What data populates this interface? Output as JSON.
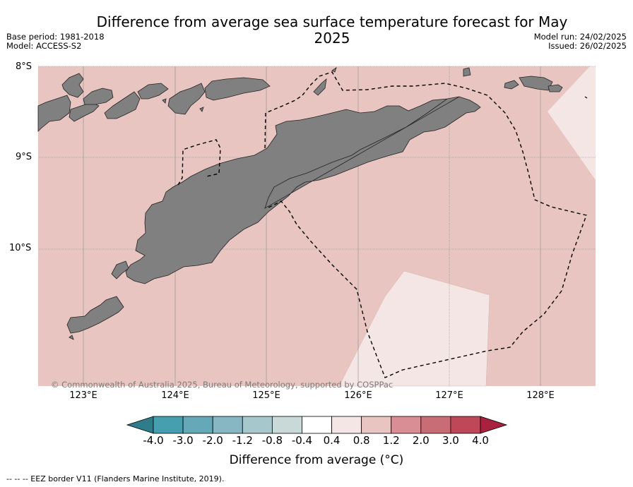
{
  "title": "Difference from average sea surface temperature forecast for May 2025",
  "meta_left": [
    "Base period: 1981-2018",
    "Model: ACCESS-S2"
  ],
  "meta_right": [
    "Model run: 24/02/2025",
    "Issued: 26/02/2025"
  ],
  "lat_labels": [
    "8°S",
    "9°S",
    "10°S"
  ],
  "lon_labels": [
    "123°E",
    "124°E",
    "125°E",
    "126°E",
    "127°E",
    "128°E"
  ],
  "copyright": "© Commonwealth of Australia 2025, Bureau of Meteorology, supported by COSPPac",
  "colorbar": {
    "ticks": [
      "-4.0",
      "-3.0",
      "-2.0",
      "-1.2",
      "-0.8",
      "-0.4",
      "0.4",
      "0.8",
      "1.2",
      "2.0",
      "3.0",
      "4.0"
    ],
    "colors": [
      "#459faf",
      "#65a8b8",
      "#86b7c3",
      "#a6c7cc",
      "#c9d9d8",
      "#ffffff",
      "#f4e6e4",
      "#e8c5c0",
      "#d88e94",
      "#c86c75",
      "#bf4858"
    ],
    "under_color": "#2e7d8b",
    "over_color": "#a8213f",
    "label": "Difference from average ($^\\circ$C)",
    "label_display": "Difference from average (°C)"
  },
  "legend_note": "--  --  -- EEZ border V11 (Flanders Marine Institute, 2019).",
  "map_colors": {
    "ocean_main": "#e8c5c0",
    "ocean_light": "#f4e6e4",
    "land": "#808080"
  }
}
